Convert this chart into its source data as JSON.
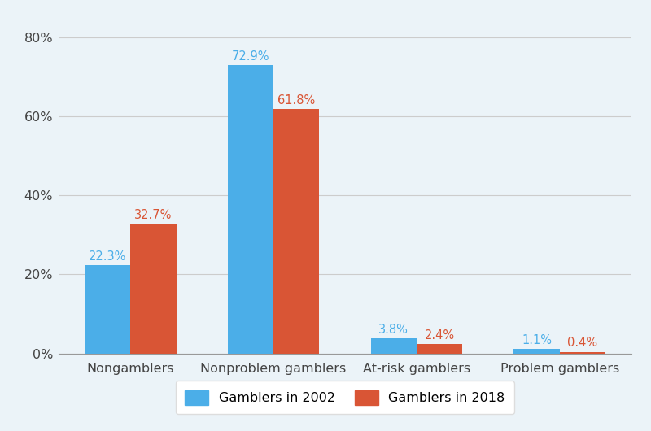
{
  "categories": [
    "Nongamblers",
    "Nonproblem gamblers",
    "At-risk gamblers",
    "Problem gamblers"
  ],
  "values_2002": [
    22.3,
    72.9,
    3.8,
    1.1
  ],
  "values_2018": [
    32.7,
    61.8,
    2.4,
    0.4
  ],
  "labels_2002": [
    "22.3%",
    "72.9%",
    "3.8%",
    "1.1%"
  ],
  "labels_2018": [
    "32.7%",
    "61.8%",
    "2.4%",
    "0.4%"
  ],
  "color_2002": "#4BAEE8",
  "color_2018": "#D95535",
  "background_color": "#EBF3F8",
  "legend_2002": "Gamblers in 2002",
  "legend_2018": "Gamblers in 2018",
  "ylim": [
    0,
    85
  ],
  "yticks": [
    0,
    20,
    40,
    60,
    80
  ],
  "ytick_labels": [
    "0%",
    "20%",
    "40%",
    "60%",
    "80%"
  ],
  "bar_width": 0.32,
  "label_fontsize": 10.5,
  "tick_fontsize": 11.5,
  "legend_fontsize": 11.5,
  "tick_color": "#444444",
  "grid_color": "#CCCCCC"
}
